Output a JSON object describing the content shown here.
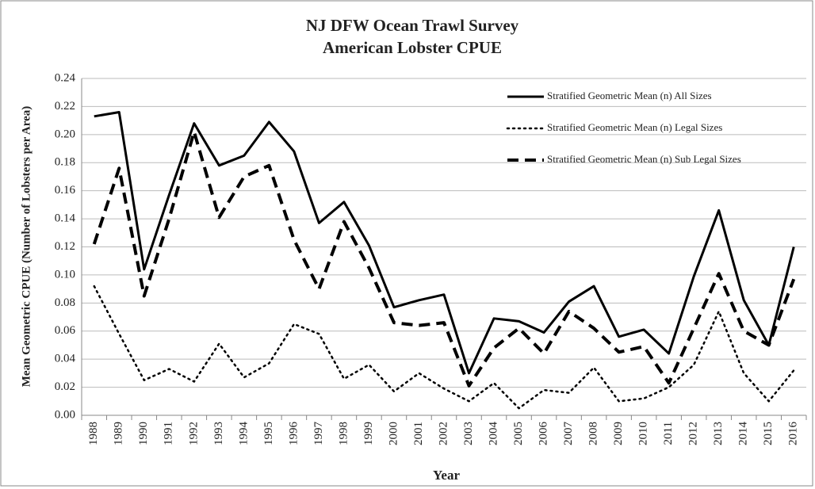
{
  "chart_data": {
    "type": "line",
    "title": "NJ DFW Ocean Trawl Survey",
    "subtitle": "American Lobster CPUE",
    "x_label": "Year",
    "y_label": "Mean Geometric CPUE (Number  of Lobsters per Area)",
    "categories": [
      "1988",
      "1989",
      "1990",
      "1991",
      "1992",
      "1993",
      "1994",
      "1995",
      "1996",
      "1997",
      "1998",
      "1999",
      "2000",
      "2001",
      "2002",
      "2003",
      "2004",
      "2005",
      "2006",
      "2007",
      "2008",
      "2009",
      "2010",
      "2011",
      "2012",
      "2013",
      "2014",
      "2015",
      "2016"
    ],
    "series": [
      {
        "name": "Stratified Geometric Mean (n) All Sizes",
        "color": "#000000",
        "dash": "solid",
        "values": [
          0.213,
          0.216,
          0.104,
          0.157,
          0.208,
          0.178,
          0.185,
          0.209,
          0.188,
          0.137,
          0.152,
          0.121,
          0.077,
          0.082,
          0.086,
          0.03,
          0.069,
          0.067,
          0.059,
          0.081,
          0.092,
          0.056,
          0.061,
          0.044,
          0.099,
          0.146,
          0.082,
          0.05,
          0.12
        ]
      },
      {
        "name": "Stratified Geometric Mean (n) Legal Sizes",
        "color": "#000000",
        "dash": "dotted",
        "values": [
          0.092,
          0.058,
          0.025,
          0.033,
          0.024,
          0.051,
          0.027,
          0.037,
          0.065,
          0.058,
          0.026,
          0.036,
          0.017,
          0.03,
          0.019,
          0.01,
          0.023,
          0.005,
          0.018,
          0.016,
          0.034,
          0.01,
          0.012,
          0.02,
          0.036,
          0.074,
          0.03,
          0.01,
          0.032
        ]
      },
      {
        "name": "Stratified Geometric Mean (n) Sub Legal Sizes",
        "color": "#000000",
        "dash": "dashed",
        "values": [
          0.122,
          0.176,
          0.085,
          0.14,
          0.202,
          0.141,
          0.17,
          0.178,
          0.125,
          0.09,
          0.138,
          0.105,
          0.066,
          0.064,
          0.066,
          0.021,
          0.048,
          0.062,
          0.044,
          0.074,
          0.062,
          0.045,
          0.049,
          0.023,
          0.062,
          0.101,
          0.06,
          0.05,
          0.097
        ]
      }
    ],
    "ylim": [
      0,
      0.24
    ],
    "yticks": [
      {
        "value": 0,
        "label": "0.00"
      },
      {
        "value": 0.02,
        "label": "0.02"
      },
      {
        "value": 0.04,
        "label": "0.04"
      },
      {
        "value": 0.06,
        "label": "0.06"
      },
      {
        "value": 0.08,
        "label": "0.08"
      },
      {
        "value": 0.1,
        "label": "0.10"
      },
      {
        "value": 0.12,
        "label": "0.12"
      },
      {
        "value": 0.14,
        "label": "0.14"
      },
      {
        "value": 0.16,
        "label": "0.16"
      },
      {
        "value": 0.18,
        "label": "0.18"
      },
      {
        "value": 0.2,
        "label": "0.20"
      },
      {
        "value": 0.22,
        "label": "0.22"
      },
      {
        "value": 0.24,
        "label": "0.24"
      }
    ],
    "grid": true,
    "legend": "upper-right"
  }
}
